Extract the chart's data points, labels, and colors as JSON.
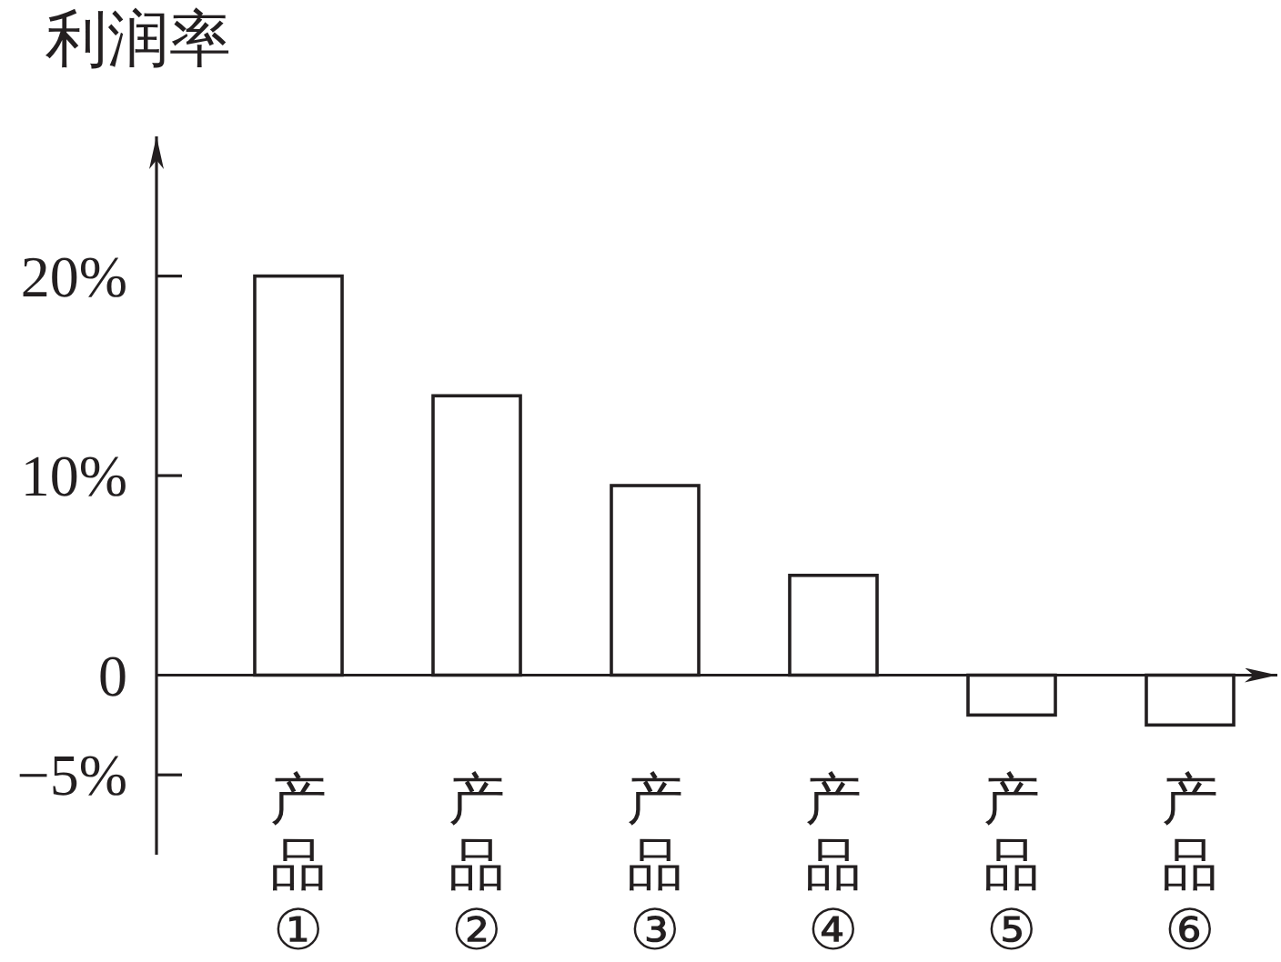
{
  "chart_data": {
    "type": "bar",
    "ylabel": "利润率",
    "categories": [
      "产品①",
      "产品②",
      "产品③",
      "产品④",
      "产品⑤",
      "产品⑥"
    ],
    "values": [
      20,
      14,
      9.5,
      5,
      -2,
      -2.5
    ],
    "color": "#231f20",
    "ylim": [
      -9,
      27
    ],
    "yticks": [
      {
        "value": 20,
        "label": "20%"
      },
      {
        "value": 10,
        "label": "10%"
      },
      0,
      {
        "value": -5,
        "label": "−5%"
      }
    ]
  }
}
